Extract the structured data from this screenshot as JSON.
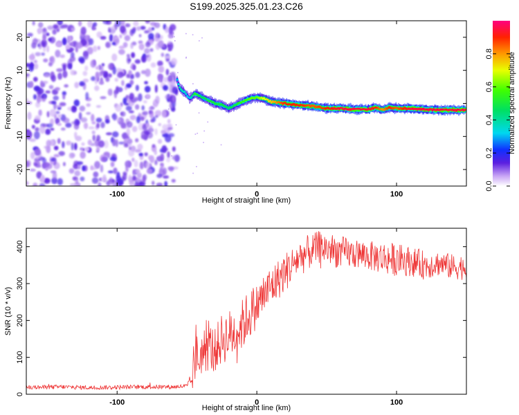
{
  "title": "S199.2025.325.01.23.C26",
  "chart_data": [
    {
      "type": "heatmap",
      "name": "spectrogram",
      "title": "S199.2025.325.01.23.C26",
      "xlabel": "Height of straight line (km)",
      "ylabel": "Frequency (Hz)",
      "xlim": [
        -165,
        150
      ],
      "ylim": [
        -25,
        25
      ],
      "xticks": [
        -100,
        0,
        100
      ],
      "xtick_labels": [
        "-100",
        "0",
        "100"
      ],
      "yticks": [
        -20,
        -10,
        0,
        10,
        20
      ],
      "ytick_labels": [
        "-20",
        "-10",
        "0",
        "10",
        "20"
      ],
      "noise_region_x": [
        -165,
        -57
      ],
      "signal_track": {
        "x": [
          -57,
          -55,
          -52,
          -48,
          -44,
          -40,
          -35,
          -30,
          -25,
          -20,
          -15,
          -10,
          -5,
          0,
          5,
          10,
          20,
          30,
          40,
          50,
          60,
          70,
          80,
          85,
          90,
          95,
          100,
          110,
          120,
          130,
          150
        ],
        "freq": [
          7,
          4.5,
          3.5,
          1.5,
          3,
          2,
          1,
          0,
          -0.5,
          -1.5,
          -0.5,
          0.5,
          1.5,
          1.8,
          1.5,
          0.5,
          0,
          -0.5,
          -0.8,
          -1.5,
          -1.5,
          -1.8,
          -1.8,
          -1.2,
          -2,
          -1.2,
          -1.5,
          -1.5,
          -1.8,
          -2,
          -2
        ],
        "amp": [
          0.3,
          0.4,
          0.35,
          0.3,
          0.55,
          0.45,
          0.5,
          0.5,
          0.5,
          0.45,
          0.5,
          0.55,
          0.6,
          0.6,
          0.7,
          0.75,
          0.9,
          0.9,
          0.85,
          0.9,
          0.95,
          0.95,
          0.95,
          0.9,
          0.8,
          0.9,
          0.85,
          0.95,
          0.95,
          0.95,
          0.95
        ]
      },
      "colorbar": {
        "label": "Normalized spectral amplitude",
        "range": [
          0,
          1
        ],
        "ticks": [
          0.0,
          0.2,
          0.4,
          0.6,
          0.8
        ],
        "tick_labels": [
          "0.0",
          "0.2",
          "0.4",
          "0.6",
          "0.8"
        ]
      }
    },
    {
      "type": "line",
      "name": "snr",
      "xlabel": "Height of straight line (km)",
      "ylabel": "SNR (10 * v/v)",
      "xlim": [
        -165,
        150
      ],
      "ylim": [
        0,
        450
      ],
      "xticks": [
        -100,
        0,
        100
      ],
      "xtick_labels": [
        "-100",
        "0",
        "100"
      ],
      "yticks": [
        0,
        100,
        200,
        300,
        400
      ],
      "ytick_labels": [
        "0",
        "100",
        "200",
        "300",
        "400"
      ],
      "color": "#ee3333",
      "series": [
        {
          "name": "SNR",
          "x": [
            -165,
            -140,
            -120,
            -100,
            -80,
            -60,
            -50,
            -46,
            -44,
            -42,
            -40,
            -35,
            -30,
            -25,
            -20,
            -15,
            -10,
            -5,
            0,
            5,
            10,
            15,
            20,
            25,
            30,
            35,
            40,
            45,
            50,
            55,
            60,
            70,
            80,
            90,
            100,
            110,
            120,
            130,
            140,
            150
          ],
          "values": [
            18,
            20,
            18,
            19,
            20,
            20,
            22,
            40,
            120,
            90,
            110,
            130,
            120,
            150,
            160,
            170,
            190,
            220,
            240,
            270,
            290,
            310,
            330,
            350,
            370,
            380,
            390,
            400,
            395,
            390,
            385,
            380,
            375,
            370,
            365,
            360,
            350,
            355,
            345,
            345
          ],
          "spread": [
            6,
            6,
            6,
            6,
            6,
            6,
            6,
            30,
            90,
            60,
            60,
            70,
            60,
            70,
            70,
            70,
            70,
            70,
            60,
            60,
            60,
            55,
            55,
            50,
            50,
            50,
            45,
            45,
            45,
            45,
            45,
            40,
            40,
            45,
            45,
            40,
            40,
            35,
            35,
            35
          ]
        }
      ]
    }
  ]
}
